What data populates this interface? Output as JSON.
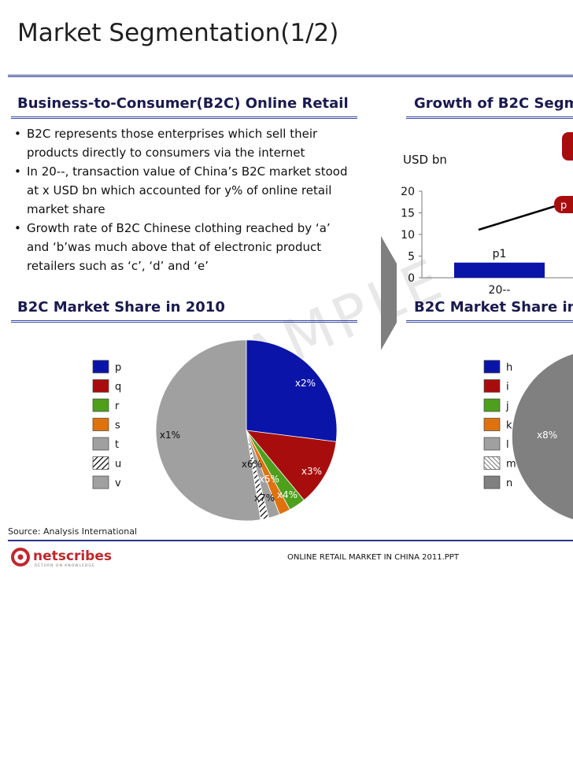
{
  "title": "Market Segmentation(1/2)",
  "left_section": {
    "heading": "Business-to-Consumer(B2C) Online Retail",
    "bullets": [
      "B2C represents those enterprises which sell their products directly to consumers via the internet",
      "In 20--, transaction value of China’s B2C market stood at x USD bn which accounted for y% of online retail market share",
      "Growth rate of B2C Chinese clothing reached by ‘a’ and ‘b’was much above that of electronic product retailers such as ‘c’, ‘d’ and ‘e’"
    ]
  },
  "right_section": {
    "heading": "Growth of B2C Segm"
  },
  "pie_left": {
    "heading": "B2C Market Share in 2010"
  },
  "pie_right": {
    "heading": "B2C Market Share in"
  },
  "watermark": "SAMPLE",
  "source": "Source: Analysis International",
  "footer": "ONLINE RETAIL MARKET IN CHINA 2011.PPT",
  "logo": {
    "text": "netscribes",
    "tagline": "RETURN ON KNOWLEDGE"
  },
  "colors": {
    "accent": "#27348b",
    "blue": "#0b14a8",
    "red": "#a80d0d",
    "green": "#4ea01c",
    "orange": "#e0720e",
    "gray": "#a0a0a0",
    "darkgray": "#808080"
  },
  "chart_data": [
    {
      "type": "bar",
      "ylabel": "USD bn",
      "categories": [
        "20--"
      ],
      "ylim": [
        0,
        20
      ],
      "yticks": [
        0,
        5,
        10,
        15,
        20
      ],
      "series": [
        {
          "values": [
            3.5
          ]
        }
      ],
      "bar_labels": [
        "p1"
      ],
      "trend_labels": [
        "p"
      ]
    },
    {
      "type": "pie",
      "legend": [
        "p",
        "q",
        "r",
        "s",
        "t",
        "u",
        "v"
      ],
      "slice_labels": [
        "x2%",
        "x3%",
        "x4%",
        "x5%",
        "x7%",
        "x6%",
        "x1%"
      ],
      "values": [
        27,
        12,
        3,
        2,
        2,
        1.5,
        52.5
      ],
      "colors": [
        "#0b14a8",
        "#a80d0d",
        "#4ea01c",
        "#e0720e",
        "#a0a0a0",
        "hatch",
        "#a0a0a0"
      ]
    },
    {
      "type": "pie",
      "legend": [
        "h",
        "i",
        "j",
        "k",
        "l",
        "m",
        "n"
      ],
      "slice_labels": [
        "x8%"
      ],
      "colors": [
        "#0b14a8",
        "#a80d0d",
        "#4ea01c",
        "#e0720e",
        "#a0a0a0",
        "hatch",
        "#808080"
      ]
    }
  ]
}
